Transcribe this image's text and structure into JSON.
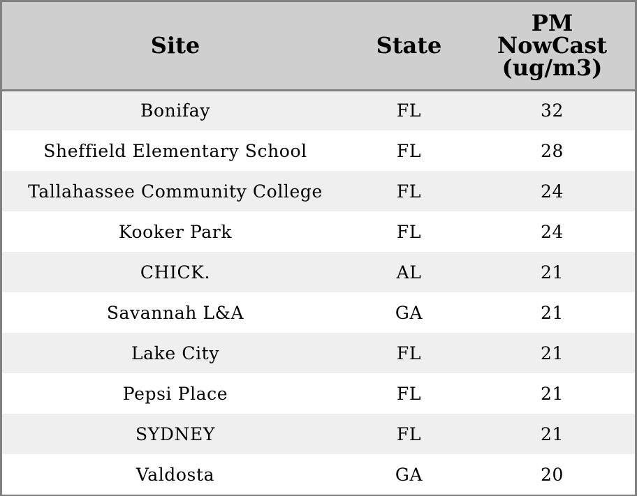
{
  "chart_data": {
    "type": "table",
    "columns": [
      "Site",
      "State",
      "PM NowCast (ug/m3)"
    ],
    "header_lines": {
      "site": "Site",
      "state": "State",
      "pm": [
        "PM",
        "NowCast",
        "(ug/m3)"
      ]
    },
    "rows": [
      {
        "site": "Bonifay",
        "state": "FL",
        "pm": 32
      },
      {
        "site": "Sheffield Elementary School",
        "state": "FL",
        "pm": 28
      },
      {
        "site": "Tallahassee Community College",
        "state": "FL",
        "pm": 24
      },
      {
        "site": "Kooker Park",
        "state": "FL",
        "pm": 24
      },
      {
        "site": "CHICK.",
        "state": "AL",
        "pm": 21
      },
      {
        "site": "Savannah L&A",
        "state": "GA",
        "pm": 21
      },
      {
        "site": "Lake City",
        "state": "FL",
        "pm": 21
      },
      {
        "site": "Pepsi Place",
        "state": "FL",
        "pm": 21
      },
      {
        "site": "SYDNEY",
        "state": "FL",
        "pm": 21
      },
      {
        "site": "Valdosta",
        "state": "GA",
        "pm": 20
      }
    ]
  },
  "colors": {
    "header_bg": "#cfcfcf",
    "row_alt_bg": "#efefef",
    "row_bg": "#ffffff",
    "border": "#808080"
  }
}
